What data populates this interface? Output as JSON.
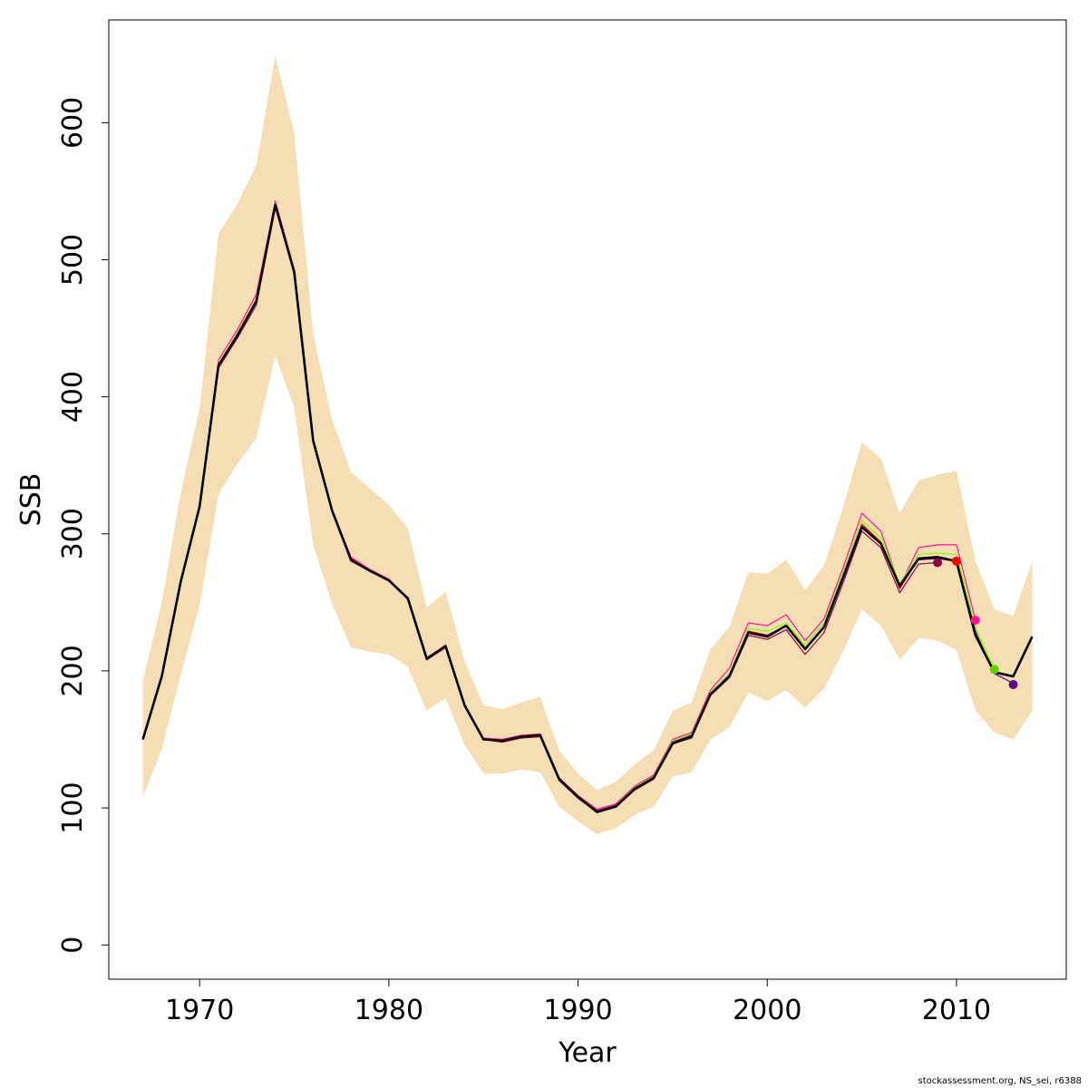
{
  "chart_data": {
    "type": "line",
    "title": "",
    "xlabel": "Year",
    "ylabel": "SSB",
    "xlim": [
      1965.2,
      2015.8
    ],
    "ylim": [
      -25,
      675
    ],
    "x_ticks": [
      1970,
      1980,
      1990,
      2000,
      2010
    ],
    "y_ticks": [
      0,
      100,
      200,
      300,
      400,
      500,
      600
    ],
    "grid": false,
    "legend": "none",
    "band": {
      "color": "#f5deb3",
      "x": [
        1967,
        1968,
        1969,
        1970,
        1971,
        1972,
        1973,
        1974,
        1975,
        1976,
        1977,
        1978,
        1979,
        1980,
        1981,
        1982,
        1983,
        1984,
        1985,
        1986,
        1987,
        1988,
        1989,
        1990,
        1991,
        1992,
        1993,
        1994,
        1995,
        1996,
        1997,
        1998,
        1999,
        2000,
        2001,
        2002,
        2003,
        2004,
        2005,
        2006,
        2007,
        2008,
        2009,
        2010,
        2011,
        2012,
        2013,
        2014
      ],
      "upper": [
        193,
        250,
        330,
        392,
        519,
        541,
        569,
        649,
        592,
        446,
        383,
        345,
        333,
        321,
        304,
        246,
        258,
        207,
        175,
        172,
        177,
        181,
        142,
        125,
        113,
        119,
        132,
        142,
        171,
        177,
        216,
        232,
        272,
        271,
        281,
        259,
        277,
        319,
        367,
        355,
        315,
        339,
        343,
        346,
        280,
        245,
        240,
        280
      ],
      "lower": [
        108,
        143,
        197,
        248,
        329,
        351,
        370,
        430,
        392,
        292,
        249,
        217,
        214,
        212,
        203,
        171,
        180,
        146,
        125,
        125,
        128,
        126,
        101,
        90,
        81,
        85,
        95,
        101,
        123,
        126,
        150,
        159,
        184,
        178,
        186,
        173,
        187,
        214,
        245,
        233,
        208,
        224,
        222,
        215,
        171,
        155,
        150,
        171
      ]
    },
    "series": [
      {
        "color": "#ff1493",
        "x": [
          1967,
          1968,
          1969,
          1970,
          1971,
          1972,
          1973,
          1974,
          1975,
          1976,
          1977,
          1978,
          1979,
          1980,
          1981,
          1982,
          1983,
          1984,
          1985,
          1986,
          1987,
          1988,
          1989,
          1990,
          1991,
          1992,
          1993,
          1994,
          1995,
          1996,
          1997,
          1998,
          1999,
          2000,
          2001,
          2002,
          2003,
          2004,
          2005,
          2006,
          2007,
          2008,
          2009,
          2010,
          2011
        ],
        "y": [
          151,
          197,
          266,
          321,
          427,
          449,
          475,
          543,
          493,
          369,
          318,
          283,
          274,
          267,
          253,
          209,
          219,
          176,
          151,
          150,
          153,
          154,
          122,
          109,
          99,
          103,
          116,
          124,
          150,
          155,
          186,
          202,
          235,
          233,
          241,
          222,
          238,
          275,
          315,
          302,
          262,
          290,
          292,
          292,
          237
        ]
      },
      {
        "color": "#7fff00",
        "x": [
          1967,
          1968,
          1969,
          1970,
          1971,
          1972,
          1973,
          1974,
          1975,
          1976,
          1977,
          1978,
          1979,
          1980,
          1981,
          1982,
          1983,
          1984,
          1985,
          1986,
          1987,
          1988,
          1989,
          1990,
          1991,
          1992,
          1993,
          1994,
          1995,
          1996,
          1997,
          1998,
          1999,
          2000,
          2001,
          2002,
          2003,
          2004,
          2005,
          2006,
          2007,
          2008,
          2009,
          2010,
          2011,
          2012
        ],
        "y": [
          150,
          196,
          265,
          320,
          424,
          446,
          471,
          541,
          491,
          368,
          317,
          281,
          273,
          266,
          253,
          209,
          218,
          175,
          150,
          149,
          152,
          153,
          121,
          108,
          98,
          102,
          115,
          123,
          149,
          154,
          184,
          198,
          231,
          229,
          235,
          219,
          235,
          272,
          310,
          297,
          264,
          285,
          286,
          285,
          232,
          201
        ]
      },
      {
        "color": "#8b0045",
        "x": [
          1967,
          1968,
          1969,
          1970,
          1971,
          1972,
          1973,
          1974,
          1975,
          1976,
          1977,
          1978,
          1979,
          1980,
          1981,
          1982,
          1983,
          1984,
          1985,
          1986,
          1987,
          1988,
          1989,
          1990,
          1991,
          1992,
          1993,
          1994,
          1995,
          1996,
          1997,
          1998,
          1999,
          2000,
          2001,
          2002,
          2003,
          2004,
          2005,
          2006,
          2007,
          2008,
          2009
        ],
        "y": [
          150,
          195,
          264,
          319,
          421,
          443,
          467,
          538,
          490,
          367,
          316,
          280,
          273,
          266,
          252,
          208,
          217,
          174,
          150,
          148,
          151,
          152,
          120,
          107,
          97,
          101,
          113,
          121,
          147,
          151,
          182,
          195,
          226,
          223,
          230,
          212,
          228,
          264,
          302,
          290,
          257,
          278,
          279
        ]
      },
      {
        "color": "#ff0000",
        "x": [
          1967,
          1968,
          1969,
          1970,
          1971,
          1972,
          1973,
          1974,
          1975,
          1976,
          1977,
          1978,
          1979,
          1980,
          1981,
          1982,
          1983,
          1984,
          1985,
          1986,
          1987,
          1988,
          1989,
          1990,
          1991,
          1992,
          1993,
          1994,
          1995,
          1996,
          1997,
          1998,
          1999,
          2000,
          2001,
          2002,
          2003,
          2004,
          2005,
          2006,
          2007,
          2008,
          2009,
          2010
        ],
        "y": [
          150,
          196,
          265,
          320,
          423,
          445,
          470,
          540,
          491,
          368,
          317,
          282,
          273,
          266,
          253,
          209,
          218,
          175,
          150,
          149,
          152,
          153,
          121,
          108,
          98,
          102,
          114,
          122,
          148,
          153,
          183,
          197,
          229,
          226,
          233,
          216,
          232,
          269,
          307,
          294,
          260,
          282,
          283,
          280
        ]
      },
      {
        "color": "#5c0a8a",
        "x": [
          1967,
          1968,
          1969,
          1970,
          1971,
          1972,
          1973,
          1974,
          1975,
          1976,
          1977,
          1978,
          1979,
          1980,
          1981,
          1982,
          1983,
          1984,
          1985,
          1986,
          1987,
          1988,
          1989,
          1990,
          1991,
          1992,
          1993,
          1994,
          1995,
          1996,
          1997,
          1998,
          1999,
          2000,
          2001,
          2002,
          2003,
          2004,
          2005,
          2006,
          2007,
          2008,
          2009,
          2010,
          2011,
          2012,
          2013
        ],
        "y": [
          150,
          196,
          265,
          320,
          423,
          445,
          470,
          540,
          491,
          368,
          317,
          281,
          273,
          266,
          253,
          209,
          218,
          175,
          150,
          149,
          152,
          153,
          121,
          108,
          98,
          102,
          114,
          122,
          148,
          153,
          183,
          197,
          228,
          226,
          233,
          216,
          232,
          269,
          305,
          293,
          262,
          281,
          282,
          280,
          229,
          198,
          191
        ]
      },
      {
        "color": "#000000",
        "width": 2.6,
        "x": [
          1967,
          1968,
          1969,
          1970,
          1971,
          1972,
          1973,
          1974,
          1975,
          1976,
          1977,
          1978,
          1979,
          1980,
          1981,
          1982,
          1983,
          1984,
          1985,
          1986,
          1987,
          1988,
          1989,
          1990,
          1991,
          1992,
          1993,
          1994,
          1995,
          1996,
          1997,
          1998,
          1999,
          2000,
          2001,
          2002,
          2003,
          2004,
          2005,
          2006,
          2007,
          2008,
          2009,
          2010,
          2011,
          2012,
          2013,
          2014
        ],
        "y": [
          150,
          196,
          265,
          320,
          423,
          445,
          470,
          540,
          491,
          368,
          317,
          281,
          273,
          266,
          253,
          209,
          218,
          175,
          150,
          149,
          152,
          153,
          121,
          108,
          97,
          101,
          114,
          122,
          147,
          152,
          183,
          196,
          228,
          225,
          233,
          216,
          232,
          268,
          305,
          293,
          262,
          282,
          283,
          280,
          226,
          199,
          196,
          225
        ]
      }
    ],
    "points": [
      {
        "x": 2009,
        "y": 279,
        "color": "#8b0045"
      },
      {
        "x": 2010,
        "y": 280,
        "color": "#ff0000"
      },
      {
        "x": 2011,
        "y": 237,
        "color": "#ff1493"
      },
      {
        "x": 2012,
        "y": 201,
        "color": "#66cd00"
      },
      {
        "x": 2013,
        "y": 190,
        "color": "#5c0a8a"
      }
    ]
  },
  "credit": "stockassessment.org, NS_sei, r6388"
}
